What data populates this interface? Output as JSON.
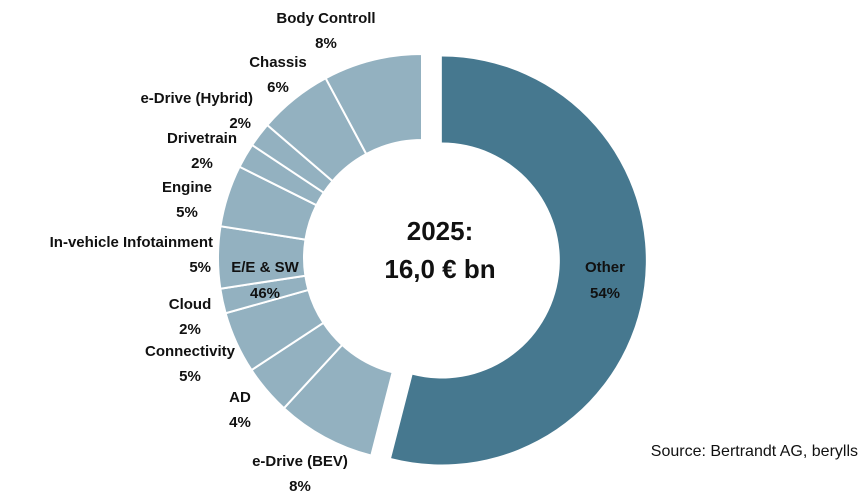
{
  "chart_data": {
    "type": "donut",
    "center_text": [
      "2025:",
      "16,0 € bn"
    ],
    "source": "Source: Bertrandt AG, berylls",
    "main": {
      "name": "Other",
      "value": 54,
      "value_label": "54%",
      "color": "#46788f"
    },
    "group": {
      "name": "E/E & SW",
      "value": 46,
      "value_label": "46%",
      "color": "#93b1c0"
    },
    "categories": [
      "e-Drive (BEV)",
      "AD",
      "Connectivity",
      "Cloud",
      "In-vehicle Infotainment",
      "Engine",
      "Drivetrain",
      "e-Drive (Hybrid)",
      "Chassis",
      "Body Controll"
    ],
    "values": [
      8,
      4,
      5,
      2,
      5,
      5,
      2,
      2,
      6,
      8
    ],
    "value_labels": [
      "8%",
      "4%",
      "5%",
      "2%",
      "5%",
      "5%",
      "2%",
      "2%",
      "6%",
      "8%"
    ]
  }
}
